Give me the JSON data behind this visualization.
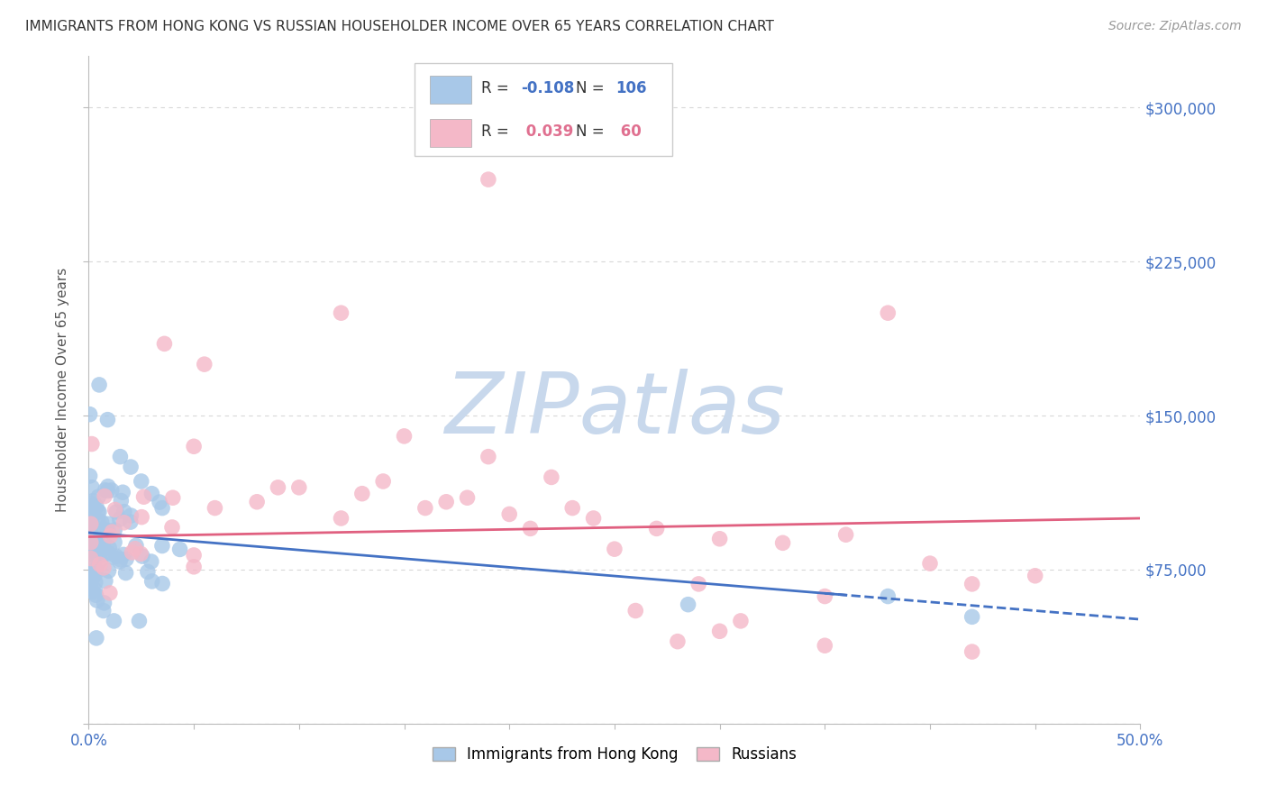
{
  "title": "IMMIGRANTS FROM HONG KONG VS RUSSIAN HOUSEHOLDER INCOME OVER 65 YEARS CORRELATION CHART",
  "source": "Source: ZipAtlas.com",
  "ylabel": "Householder Income Over 65 years",
  "xlim": [
    0.0,
    0.5
  ],
  "ylim": [
    0,
    325000
  ],
  "blue_R": -0.108,
  "blue_N": 106,
  "pink_R": 0.039,
  "pink_N": 60,
  "blue_color": "#a8c8e8",
  "blue_edge_color": "#6baed6",
  "pink_color": "#f4b8c8",
  "pink_edge_color": "#e07090",
  "blue_line_color": "#4472c4",
  "pink_line_color": "#e06080",
  "watermark": "ZIPatlas",
  "watermark_color": "#c8d8ec",
  "background_color": "#ffffff",
  "grid_color": "#d8d8d8",
  "tick_color": "#4472c4",
  "title_color": "#333333",
  "source_color": "#999999",
  "ylabel_color": "#555555"
}
